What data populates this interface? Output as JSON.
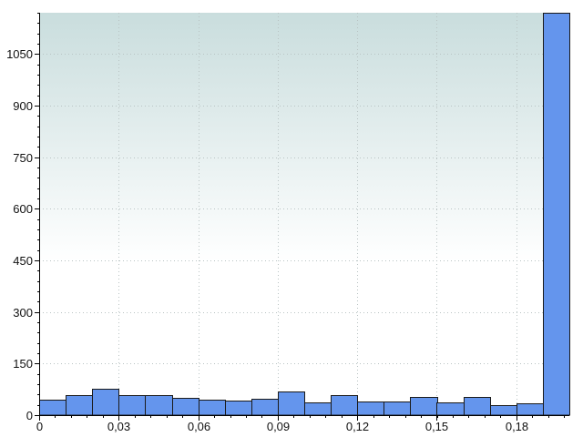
{
  "chart_data": {
    "type": "bar",
    "title": "",
    "xlabel": "",
    "ylabel": "",
    "bin_width": 0.01,
    "x": [
      0,
      0.01,
      0.02,
      0.03,
      0.04,
      0.05,
      0.06,
      0.07,
      0.08,
      0.09,
      0.1,
      0.11,
      0.12,
      0.13,
      0.14,
      0.15,
      0.16,
      0.17,
      0.18,
      0.19
    ],
    "values": [
      46,
      58,
      78,
      58,
      58,
      50,
      46,
      42,
      48,
      68,
      36,
      58,
      40,
      40,
      52,
      36,
      54,
      30,
      34,
      1170
    ],
    "xlim": [
      0,
      0.2
    ],
    "ylim": [
      0,
      1170
    ],
    "x_ticks": [
      {
        "value": 0,
        "label": "0"
      },
      {
        "value": 0.03,
        "label": "0,03"
      },
      {
        "value": 0.06,
        "label": "0,06"
      },
      {
        "value": 0.09,
        "label": "0,09"
      },
      {
        "value": 0.12,
        "label": "0,12"
      },
      {
        "value": 0.15,
        "label": "0,15"
      },
      {
        "value": 0.18,
        "label": "0,18"
      }
    ],
    "y_ticks": [
      {
        "value": 0,
        "label": "0"
      },
      {
        "value": 150,
        "label": "150"
      },
      {
        "value": 300,
        "label": "300"
      },
      {
        "value": 450,
        "label": "450"
      },
      {
        "value": 600,
        "label": "600"
      },
      {
        "value": 750,
        "label": "750"
      },
      {
        "value": 900,
        "label": "900"
      },
      {
        "value": 1050,
        "label": "1050"
      }
    ],
    "grid": true,
    "bar_color": "#6495ed",
    "background_gradient": [
      "#c9dddd",
      "#ffffff"
    ]
  }
}
